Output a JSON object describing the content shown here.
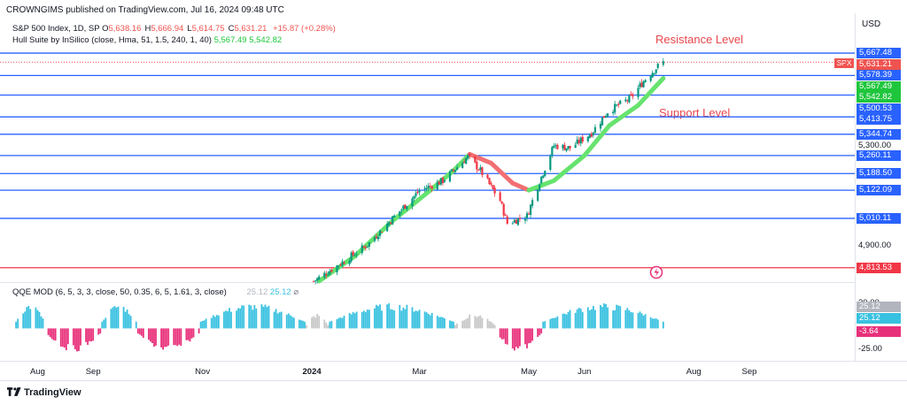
{
  "header": {
    "publisher": "CROWNGIMS published on TradingView.com, Jul 16, 2024 09:48 UTC",
    "symbol": "S&P 500 Index, 1D, SP",
    "ohlc": [
      {
        "k": "O",
        "v": "5,638.16"
      },
      {
        "k": "H",
        "v": "5,666.94"
      },
      {
        "k": "L",
        "v": "5,614.75"
      },
      {
        "k": "C",
        "v": "5,631.21"
      }
    ],
    "change": "+15.87 (+0.28%)",
    "hull_label": "Hull Suite by InSilico (close, Hma, 51, 1.5, 240, 1, 40)",
    "hull_v1": "5,567.49",
    "hull_v2": "5,542.82",
    "qqe_label": "QQE MOD (6, 5, 3, 3, close, 50, 0.35, 6, 5, 1.61, 3, close)",
    "qqe_v1": "25.12",
    "qqe_v2": "25.12"
  },
  "annotations": {
    "resistance": "Resistance Level",
    "support": "Support Level"
  },
  "currency": "USD",
  "symbol_tag": "SPX",
  "brand": "TradingView",
  "colors": {
    "level_line": "#2962ff",
    "red_line": "#f23645",
    "candle_up": "#089981",
    "candle_down": "#f23645",
    "hull_up": "#66e36e",
    "hull_down": "#f26f72",
    "qqe_up": "#38c1e0",
    "qqe_down": "#e8307a",
    "qqe_neutral": "#c8c8c8",
    "annotation": "#e8484d"
  },
  "chart_data": {
    "type": "candlestick",
    "price_axis": {
      "ylim": [
        4760,
        5710
      ],
      "ticks": [
        "5,300.00",
        "4,900.00"
      ]
    },
    "horizontal_levels": [
      {
        "value": 5667.48,
        "label": "5,667.48",
        "color": "#2962ff"
      },
      {
        "value": 5578.39,
        "label": "5,578.39",
        "color": "#2962ff"
      },
      {
        "value": 5500.53,
        "label": "5,500.53",
        "color": "#2962ff"
      },
      {
        "value": 5413.75,
        "label": "5,413.75",
        "color": "#2962ff"
      },
      {
        "value": 5344.74,
        "label": "5,344.74",
        "color": "#2962ff"
      },
      {
        "value": 5260.11,
        "label": "5,260.11",
        "color": "#2962ff"
      },
      {
        "value": 5188.5,
        "label": "5,188.50",
        "color": "#2962ff"
      },
      {
        "value": 5122.09,
        "label": "5,122.09",
        "color": "#2962ff"
      },
      {
        "value": 5010.11,
        "label": "5,010.11",
        "color": "#2962ff"
      },
      {
        "value": 4813.53,
        "label": "4,813.53",
        "color": "#f23645"
      }
    ],
    "price_tags": [
      {
        "value": 5667.48,
        "label": "5,667.48",
        "color": "#2962ff"
      },
      {
        "value": 5631.21,
        "label": "5,631.21",
        "color": "#ef5350"
      },
      {
        "value": 5578.39,
        "label": "5,578.39",
        "color": "#2962ff"
      },
      {
        "value": 5567.49,
        "label": "5,567.49",
        "color": "#1ec63c"
      },
      {
        "value": 5542.82,
        "label": "5,542.82",
        "color": "#1ec63c"
      },
      {
        "value": 5500.53,
        "label": "5,500.53",
        "color": "#2962ff"
      },
      {
        "value": 5413.75,
        "label": "5,413.75",
        "color": "#2962ff"
      },
      {
        "value": 5344.74,
        "label": "5,344.74",
        "color": "#2962ff"
      },
      {
        "value": 5260.11,
        "label": "5,260.11",
        "color": "#2962ff"
      },
      {
        "value": 5188.5,
        "label": "5,188.50",
        "color": "#2962ff"
      },
      {
        "value": 5122.09,
        "label": "5,122.09",
        "color": "#2962ff"
      },
      {
        "value": 5010.11,
        "label": "5,010.11",
        "color": "#2962ff"
      },
      {
        "value": 4813.53,
        "label": "4,813.53",
        "color": "#f23645"
      }
    ],
    "time_axis": {
      "ticks": [
        {
          "label": "Aug",
          "date": "2023-08-01",
          "bold": false
        },
        {
          "label": "Sep",
          "date": "2023-09-01",
          "bold": false
        },
        {
          "label": "Nov",
          "date": "2023-11-01",
          "bold": false
        },
        {
          "label": "2024",
          "date": "2024-01-01",
          "bold": true
        },
        {
          "label": "Mar",
          "date": "2024-03-01",
          "bold": false
        },
        {
          "label": "May",
          "date": "2024-05-01",
          "bold": false
        },
        {
          "label": "Jun",
          "date": "2024-06-01",
          "bold": false
        },
        {
          "label": "Aug",
          "date": "2024-08-01",
          "bold": false
        },
        {
          "label": "Sep",
          "date": "2024-09-01",
          "bold": false
        }
      ]
    },
    "candles_anchor_closes": [
      {
        "date": "2024-01-02",
        "close": 4760
      },
      {
        "date": "2024-01-19",
        "close": 4840
      },
      {
        "date": "2024-02-01",
        "close": 4905
      },
      {
        "date": "2024-02-15",
        "close": 5010
      },
      {
        "date": "2024-03-01",
        "close": 5120
      },
      {
        "date": "2024-03-14",
        "close": 5160
      },
      {
        "date": "2024-03-28",
        "close": 5255
      },
      {
        "date": "2024-04-04",
        "close": 5200
      },
      {
        "date": "2024-04-15",
        "close": 5080
      },
      {
        "date": "2024-04-19",
        "close": 4990
      },
      {
        "date": "2024-04-30",
        "close": 5020
      },
      {
        "date": "2024-05-06",
        "close": 5140
      },
      {
        "date": "2024-05-15",
        "close": 5300
      },
      {
        "date": "2024-05-24",
        "close": 5290
      },
      {
        "date": "2024-06-05",
        "close": 5350
      },
      {
        "date": "2024-06-14",
        "close": 5435
      },
      {
        "date": "2024-06-27",
        "close": 5490
      },
      {
        "date": "2024-07-05",
        "close": 5565
      },
      {
        "date": "2024-07-12",
        "close": 5615
      },
      {
        "date": "2024-07-15",
        "close": 5631.21
      }
    ],
    "hull_suite": [
      {
        "date": "2024-01-05",
        "value": 4760,
        "trend": "up"
      },
      {
        "date": "2024-01-25",
        "value": 4860,
        "trend": "up"
      },
      {
        "date": "2024-02-15",
        "value": 5000,
        "trend": "up"
      },
      {
        "date": "2024-03-05",
        "value": 5110,
        "trend": "up"
      },
      {
        "date": "2024-03-20",
        "value": 5200,
        "trend": "up"
      },
      {
        "date": "2024-03-29",
        "value": 5265,
        "trend": "down"
      },
      {
        "date": "2024-04-10",
        "value": 5230,
        "trend": "down"
      },
      {
        "date": "2024-04-22",
        "value": 5150,
        "trend": "down"
      },
      {
        "date": "2024-05-01",
        "value": 5122,
        "trend": "up"
      },
      {
        "date": "2024-05-15",
        "value": 5160,
        "trend": "up"
      },
      {
        "date": "2024-06-01",
        "value": 5260,
        "trend": "up"
      },
      {
        "date": "2024-06-15",
        "value": 5380,
        "trend": "up"
      },
      {
        "date": "2024-07-01",
        "value": 5460,
        "trend": "up"
      },
      {
        "date": "2024-07-15",
        "value": 5567.49,
        "trend": "up"
      }
    ],
    "qqe": {
      "ylim": [
        -30,
        35
      ],
      "ticks": [
        "30.00",
        "-25.00"
      ],
      "tags": [
        {
          "value": 25.12,
          "label": "25.12",
          "color": "#b2b5be"
        },
        {
          "value": 25.12,
          "label": "25.12",
          "color": "#38c1e0"
        },
        {
          "value": -3.64,
          "label": "-3.64",
          "color": "#e8307a"
        }
      ]
    }
  }
}
